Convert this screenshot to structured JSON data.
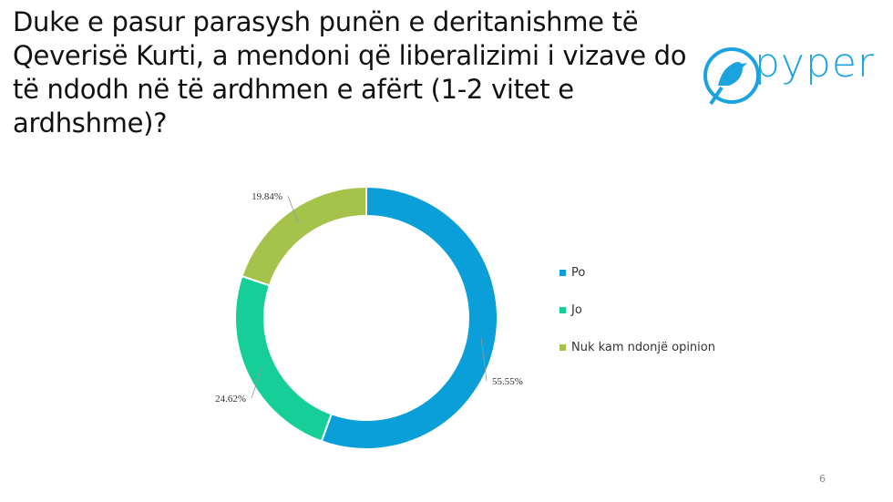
{
  "chart_data": {
    "type": "donut",
    "title": "Duke e pasur parasysh punën e deritanishme të Qeverisë Kurti, a mendoni që liberalizimi i vizave do të ndodh në të ardhmen e afërt (1-2 vitet e ardhshme)?",
    "categories": [
      "Po",
      "Jo",
      "Nuk kam ndonjë opinion"
    ],
    "values": [
      55.55,
      24.62,
      19.84
    ],
    "value_labels": [
      "55.55%",
      "24.62%",
      "19.84%"
    ],
    "colors": [
      "#0a9fd8",
      "#16cf98",
      "#a5c34a"
    ],
    "legend": "right"
  },
  "logo": "pyper",
  "page_number": "6"
}
